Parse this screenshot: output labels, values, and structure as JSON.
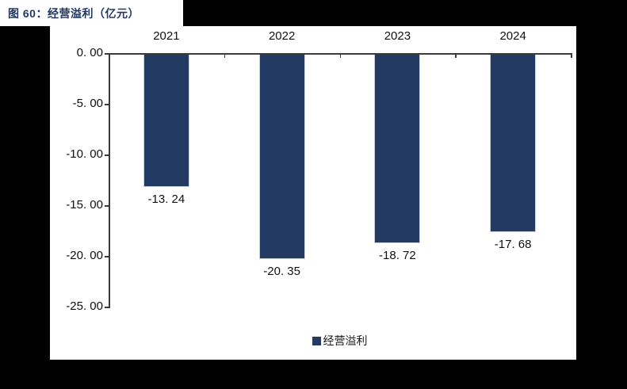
{
  "figure": {
    "title": "图 60：经营溢利（亿元）"
  },
  "colors": {
    "bar": "#233a63",
    "legend_swatch": "#233a63",
    "title_text": "#1f3864",
    "axis": "#3b3b3b",
    "label_text": "#111111",
    "chart_background": "#ffffff",
    "page_background": "#000000"
  },
  "chart_data": {
    "type": "bar",
    "title": "图 60：经营溢利（亿元）",
    "categories": [
      "2021",
      "2022",
      "2023",
      "2024"
    ],
    "series": [
      {
        "name": "经营溢利",
        "values": [
          -13.24,
          -20.35,
          -18.72,
          -17.68
        ]
      }
    ],
    "value_labels": [
      "-13. 24",
      "-20. 35",
      "-18. 72",
      "-17. 68"
    ],
    "y_ticks": [
      {
        "value": 0,
        "label": "0. 00"
      },
      {
        "value": -5,
        "label": "-5. 00"
      },
      {
        "value": -10,
        "label": "-10. 00"
      },
      {
        "value": -15,
        "label": "-15. 00"
      },
      {
        "value": -20,
        "label": "-20. 00"
      },
      {
        "value": -25,
        "label": "-25. 00"
      }
    ],
    "ylim": [
      -25,
      0
    ],
    "xlabel": "",
    "ylabel": "",
    "grid": false,
    "x_axis_position": "top",
    "legend": {
      "position": "bottom-center",
      "entries": [
        "经营溢利"
      ]
    }
  }
}
